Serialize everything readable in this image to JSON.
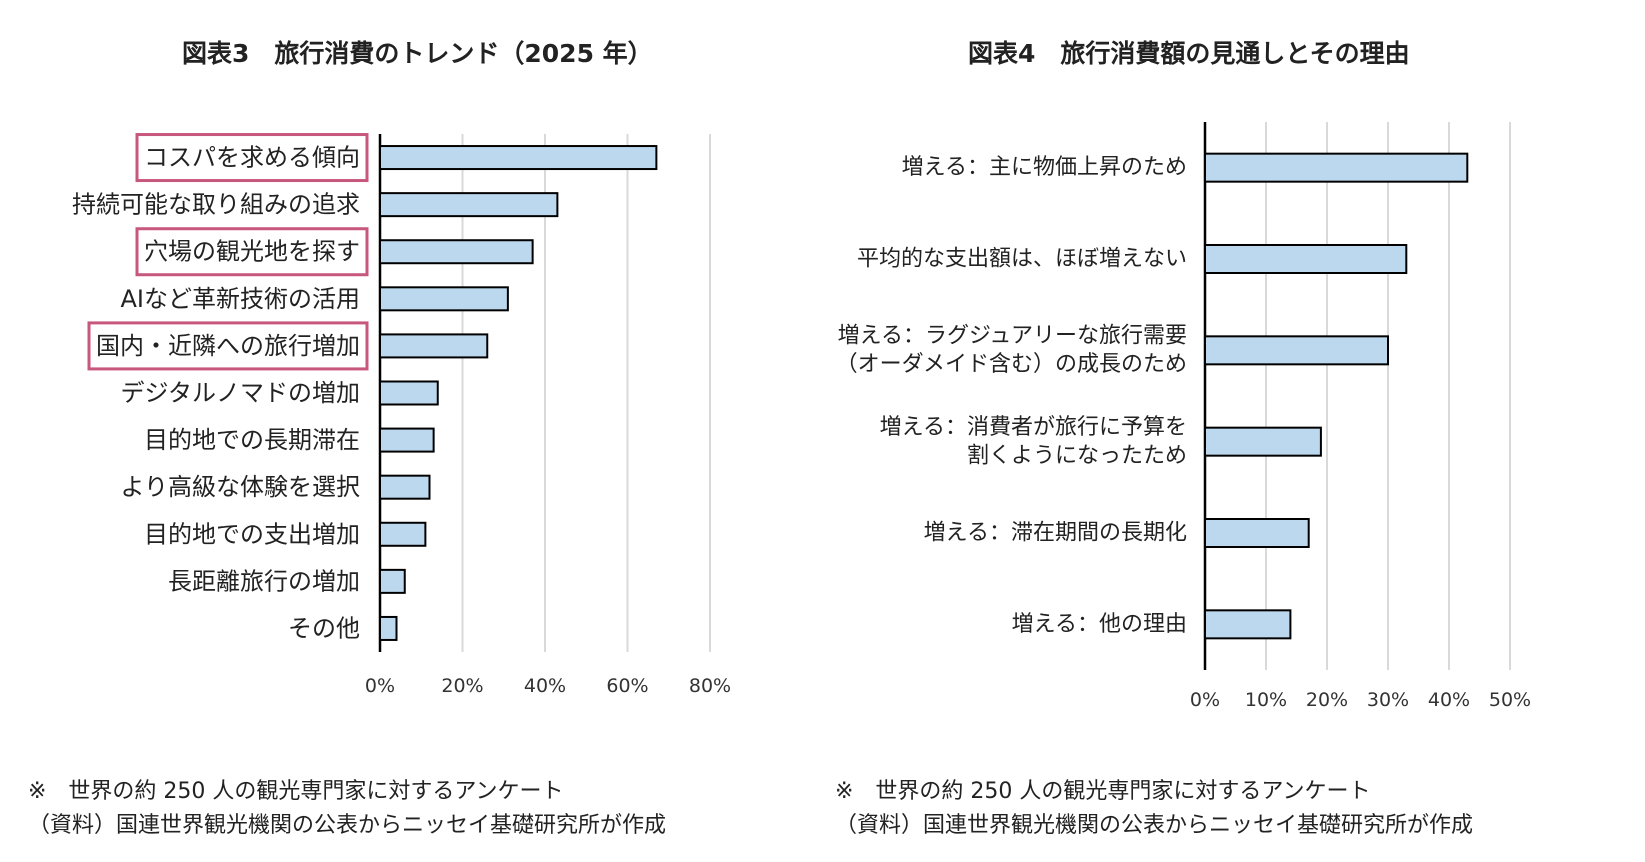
{
  "colors": {
    "bar_fill": "#bcd8ee",
    "bar_stroke": "#000000",
    "highlight_box": "#c8577e",
    "grid": "#d9d9d9"
  },
  "chart_data": [
    {
      "type": "bar",
      "orientation": "horizontal",
      "title": "図表3　旅行消費のトレンド（2025 年）",
      "categories": [
        "コスパを求める傾向",
        "持続可能な取り組みの追求",
        "穴場の観光地を探す",
        "AIなど革新技術の活用",
        "国内・近隣への旅行増加",
        "デジタルノマドの増加",
        "目的地での長期滞在",
        "より高級な体験を選択",
        "目的地での支出増加",
        "長距離旅行の増加",
        "その他"
      ],
      "values": [
        67,
        43,
        37,
        31,
        26,
        14,
        13,
        12,
        11,
        6,
        4
      ],
      "highlighted": [
        "コスパを求める傾向",
        "穴場の観光地を探す",
        "国内・近隣への旅行増加"
      ],
      "xlim": [
        0,
        80
      ],
      "tick_labels": [
        "0%",
        "20%",
        "40%",
        "60%",
        "80%"
      ],
      "grid": true,
      "notes": [
        "※　世界の約 250 人の観光専門家に対するアンケート",
        "（資料）国連世界観光機関の公表からニッセイ基礎研究所が作成"
      ]
    },
    {
      "type": "bar",
      "orientation": "horizontal",
      "title": "図表4　旅行消費額の見通しとその理由",
      "categories": [
        [
          "増える：主に物価上昇のため"
        ],
        [
          "平均的な支出額は、ほぼ増えない"
        ],
        [
          "増える：ラグジュアリーな旅行需要",
          "（オーダメイド含む）の成長のため"
        ],
        [
          "増える：消費者が旅行に予算を",
          "割くようになったため"
        ],
        [
          "増える：滞在期間の長期化"
        ],
        [
          "増える：他の理由"
        ]
      ],
      "values": [
        43,
        33,
        30,
        19,
        17,
        14
      ],
      "xlim": [
        0,
        50
      ],
      "tick_labels": [
        "0%",
        "10%",
        "20%",
        "30%",
        "40%",
        "50%"
      ],
      "grid": true,
      "notes": [
        "※　世界の約 250 人の観光専門家に対するアンケート",
        "（資料）国連世界観光機関の公表からニッセイ基礎研究所が作成"
      ]
    }
  ]
}
